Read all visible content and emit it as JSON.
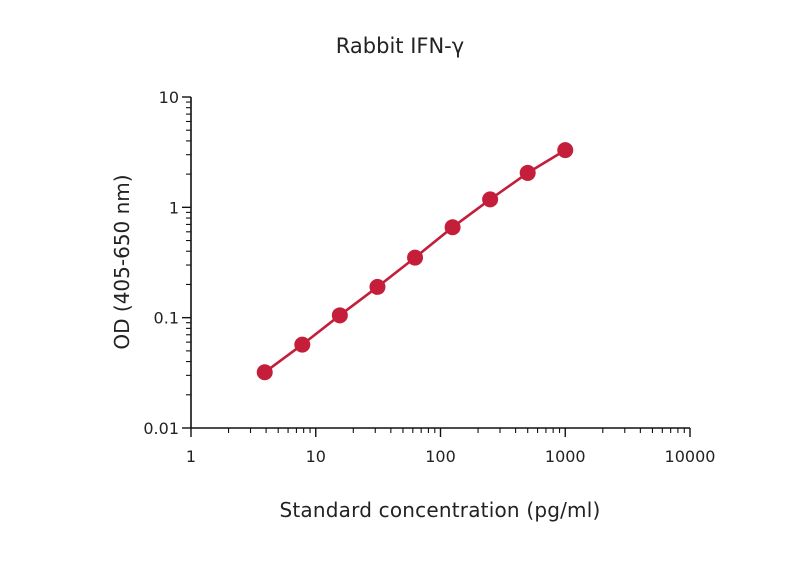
{
  "chart_data": {
    "type": "line",
    "title": "Rabbit IFN-γ",
    "xlabel": "Standard concentration (pg/ml)",
    "ylabel": "OD (405-650 nm)",
    "x_scale": "log",
    "y_scale": "log",
    "xlim": [
      1,
      10000
    ],
    "ylim": [
      0.01,
      10
    ],
    "x_ticks": [
      "1",
      "10",
      "100",
      "1000",
      "10000"
    ],
    "y_ticks": [
      "0.01",
      "0.1",
      "1",
      "10"
    ],
    "grid": false,
    "legend": "none",
    "series": [
      {
        "color": "#c41e3a",
        "markers": true,
        "x": [
          3.9,
          7.8,
          15.6,
          31.25,
          62.5,
          125,
          250,
          500,
          1000
        ],
        "y": [
          0.032,
          0.057,
          0.105,
          0.19,
          0.35,
          0.66,
          1.18,
          2.05,
          3.3
        ]
      }
    ]
  }
}
